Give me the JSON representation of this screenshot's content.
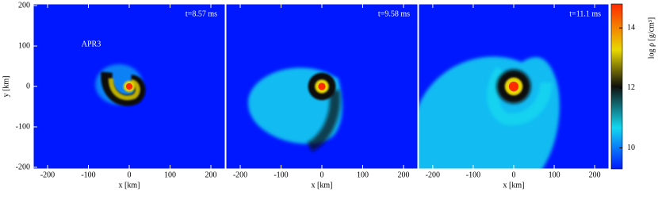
{
  "chart_data": [
    {
      "type": "heatmap",
      "annotation": "t=8.57 ms",
      "label": "APR3",
      "xlabel": "x [km]",
      "ylabel": "y [km]",
      "xlim": [
        -235,
        235
      ],
      "ylim": [
        -204,
        204
      ],
      "xticks": [
        -200,
        -100,
        0,
        100,
        200
      ],
      "yticks": [
        -200,
        -100,
        0,
        100,
        200
      ]
    },
    {
      "type": "heatmap",
      "annotation": "t=9.58 ms",
      "xlabel": "x [km]",
      "xlim": [
        -235,
        235
      ],
      "ylim": [
        -204,
        204
      ],
      "xticks": [
        -200,
        -100,
        0,
        100,
        200
      ]
    },
    {
      "type": "heatmap",
      "annotation": "t=11.1 ms",
      "xlabel": "x [km]",
      "xlim": [
        -235,
        235
      ],
      "ylim": [
        -204,
        204
      ],
      "xticks": [
        -200,
        -100,
        0,
        100,
        200
      ]
    }
  ],
  "colorbar": {
    "label": "log ρ [g/cm³]",
    "lim": [
      9.3,
      14.8
    ],
    "ticks": [
      10,
      12,
      14
    ],
    "colormap": [
      "#0018ff",
      "#13d8f0",
      "#10100c",
      "#e8d800",
      "#ff2a00"
    ]
  }
}
